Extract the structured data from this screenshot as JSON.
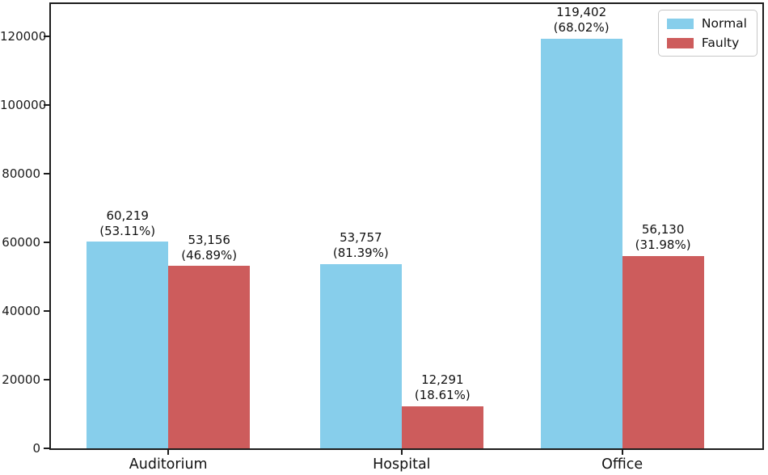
{
  "chart_data": {
    "type": "bar",
    "title": "",
    "xlabel": "",
    "ylabel": "",
    "categories": [
      "Auditorium",
      "Hospital",
      "Office"
    ],
    "series": [
      {
        "name": "Normal",
        "color": "#87CEEB",
        "values": [
          60219,
          53757,
          119402
        ],
        "value_labels": [
          "60,219",
          "53,757",
          "119,402"
        ],
        "pct_labels": [
          "(53.11%)",
          "(81.39%)",
          "(68.02%)"
        ]
      },
      {
        "name": "Faulty",
        "color": "#CD5C5C",
        "values": [
          53156,
          12291,
          56130
        ],
        "value_labels": [
          "53,156",
          "12,291",
          "56,130"
        ],
        "pct_labels": [
          "(46.89%)",
          "(18.61%)",
          "(31.98%)"
        ]
      }
    ],
    "yticks": [
      0,
      20000,
      40000,
      60000,
      80000,
      100000,
      120000
    ],
    "ytick_labels": [
      "0",
      "20000",
      "40000",
      "60000",
      "80000",
      "100000",
      "120000"
    ],
    "ylim": [
      0,
      129500
    ],
    "legend": {
      "position": "upper right",
      "entries": [
        "Normal",
        "Faulty"
      ]
    },
    "grid": false
  }
}
